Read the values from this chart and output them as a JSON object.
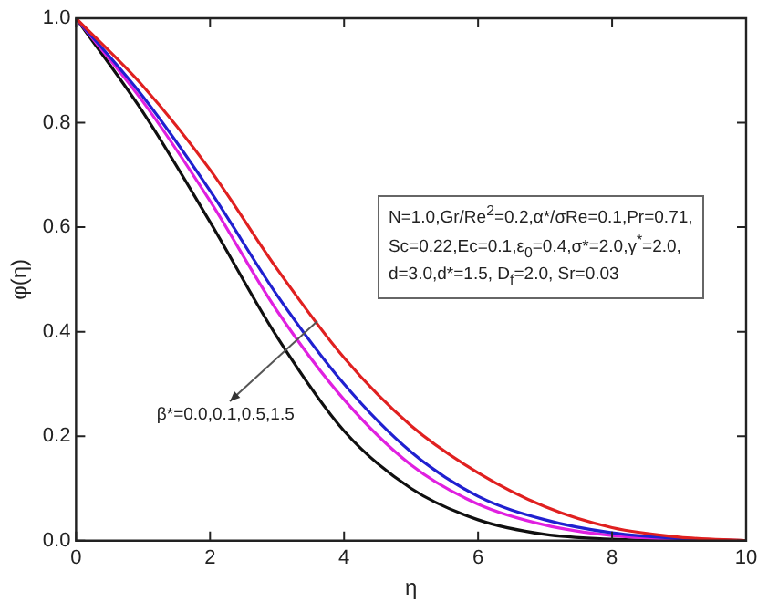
{
  "chart_data": {
    "type": "line",
    "xlabel": "η",
    "ylabel": "φ(η)",
    "x": [
      0,
      1,
      2,
      3,
      4,
      5,
      6,
      7,
      8,
      9,
      10
    ],
    "series": [
      {
        "color": "#e02020",
        "values": [
          1,
          0.87,
          0.71,
          0.52,
          0.35,
          0.22,
          0.13,
          0.065,
          0.025,
          0.007,
          0
        ]
      },
      {
        "color": "#2020d0",
        "values": [
          1,
          0.85,
          0.67,
          0.47,
          0.3,
          0.17,
          0.085,
          0.04,
          0.015,
          0.004,
          0
        ]
      },
      {
        "color": "#e020e0",
        "values": [
          1,
          0.84,
          0.65,
          0.44,
          0.27,
          0.145,
          0.07,
          0.03,
          0.01,
          0.003,
          0
        ]
      },
      {
        "color": "#101010",
        "values": [
          1,
          0.82,
          0.61,
          0.39,
          0.21,
          0.1,
          0.04,
          0.012,
          0.003,
          0,
          0
        ]
      }
    ],
    "xlim": [
      0,
      10
    ],
    "xticks": [
      0,
      2,
      4,
      6,
      8,
      10
    ],
    "ylim": [
      0,
      1
    ],
    "yticks": [
      {
        "value": 0,
        "label": "0.0"
      },
      0.2,
      0.4,
      0.6,
      0.8,
      {
        "value": 1,
        "label": "1.0"
      }
    ],
    "annotations": [
      "N=1.0,Gr/Re$^{2}$=0.2,α*/σRe=0.1,Pr=0.71,\nSc=0.22,Ec=0.1,ε$_{0}$=0.4,σ*=2.0,γ$^{*}$=2.0,\nd=3.0,d*=1.5, D$_{f}$=2.0, Sr=0.03",
      {
        "text": "β*=0.0,0.1,0.5,1.5",
        "x": 3.6,
        "y": 0.42
      }
    ],
    "grid": false,
    "legend": false,
    "marker": "none",
    "line_style": "solid"
  }
}
